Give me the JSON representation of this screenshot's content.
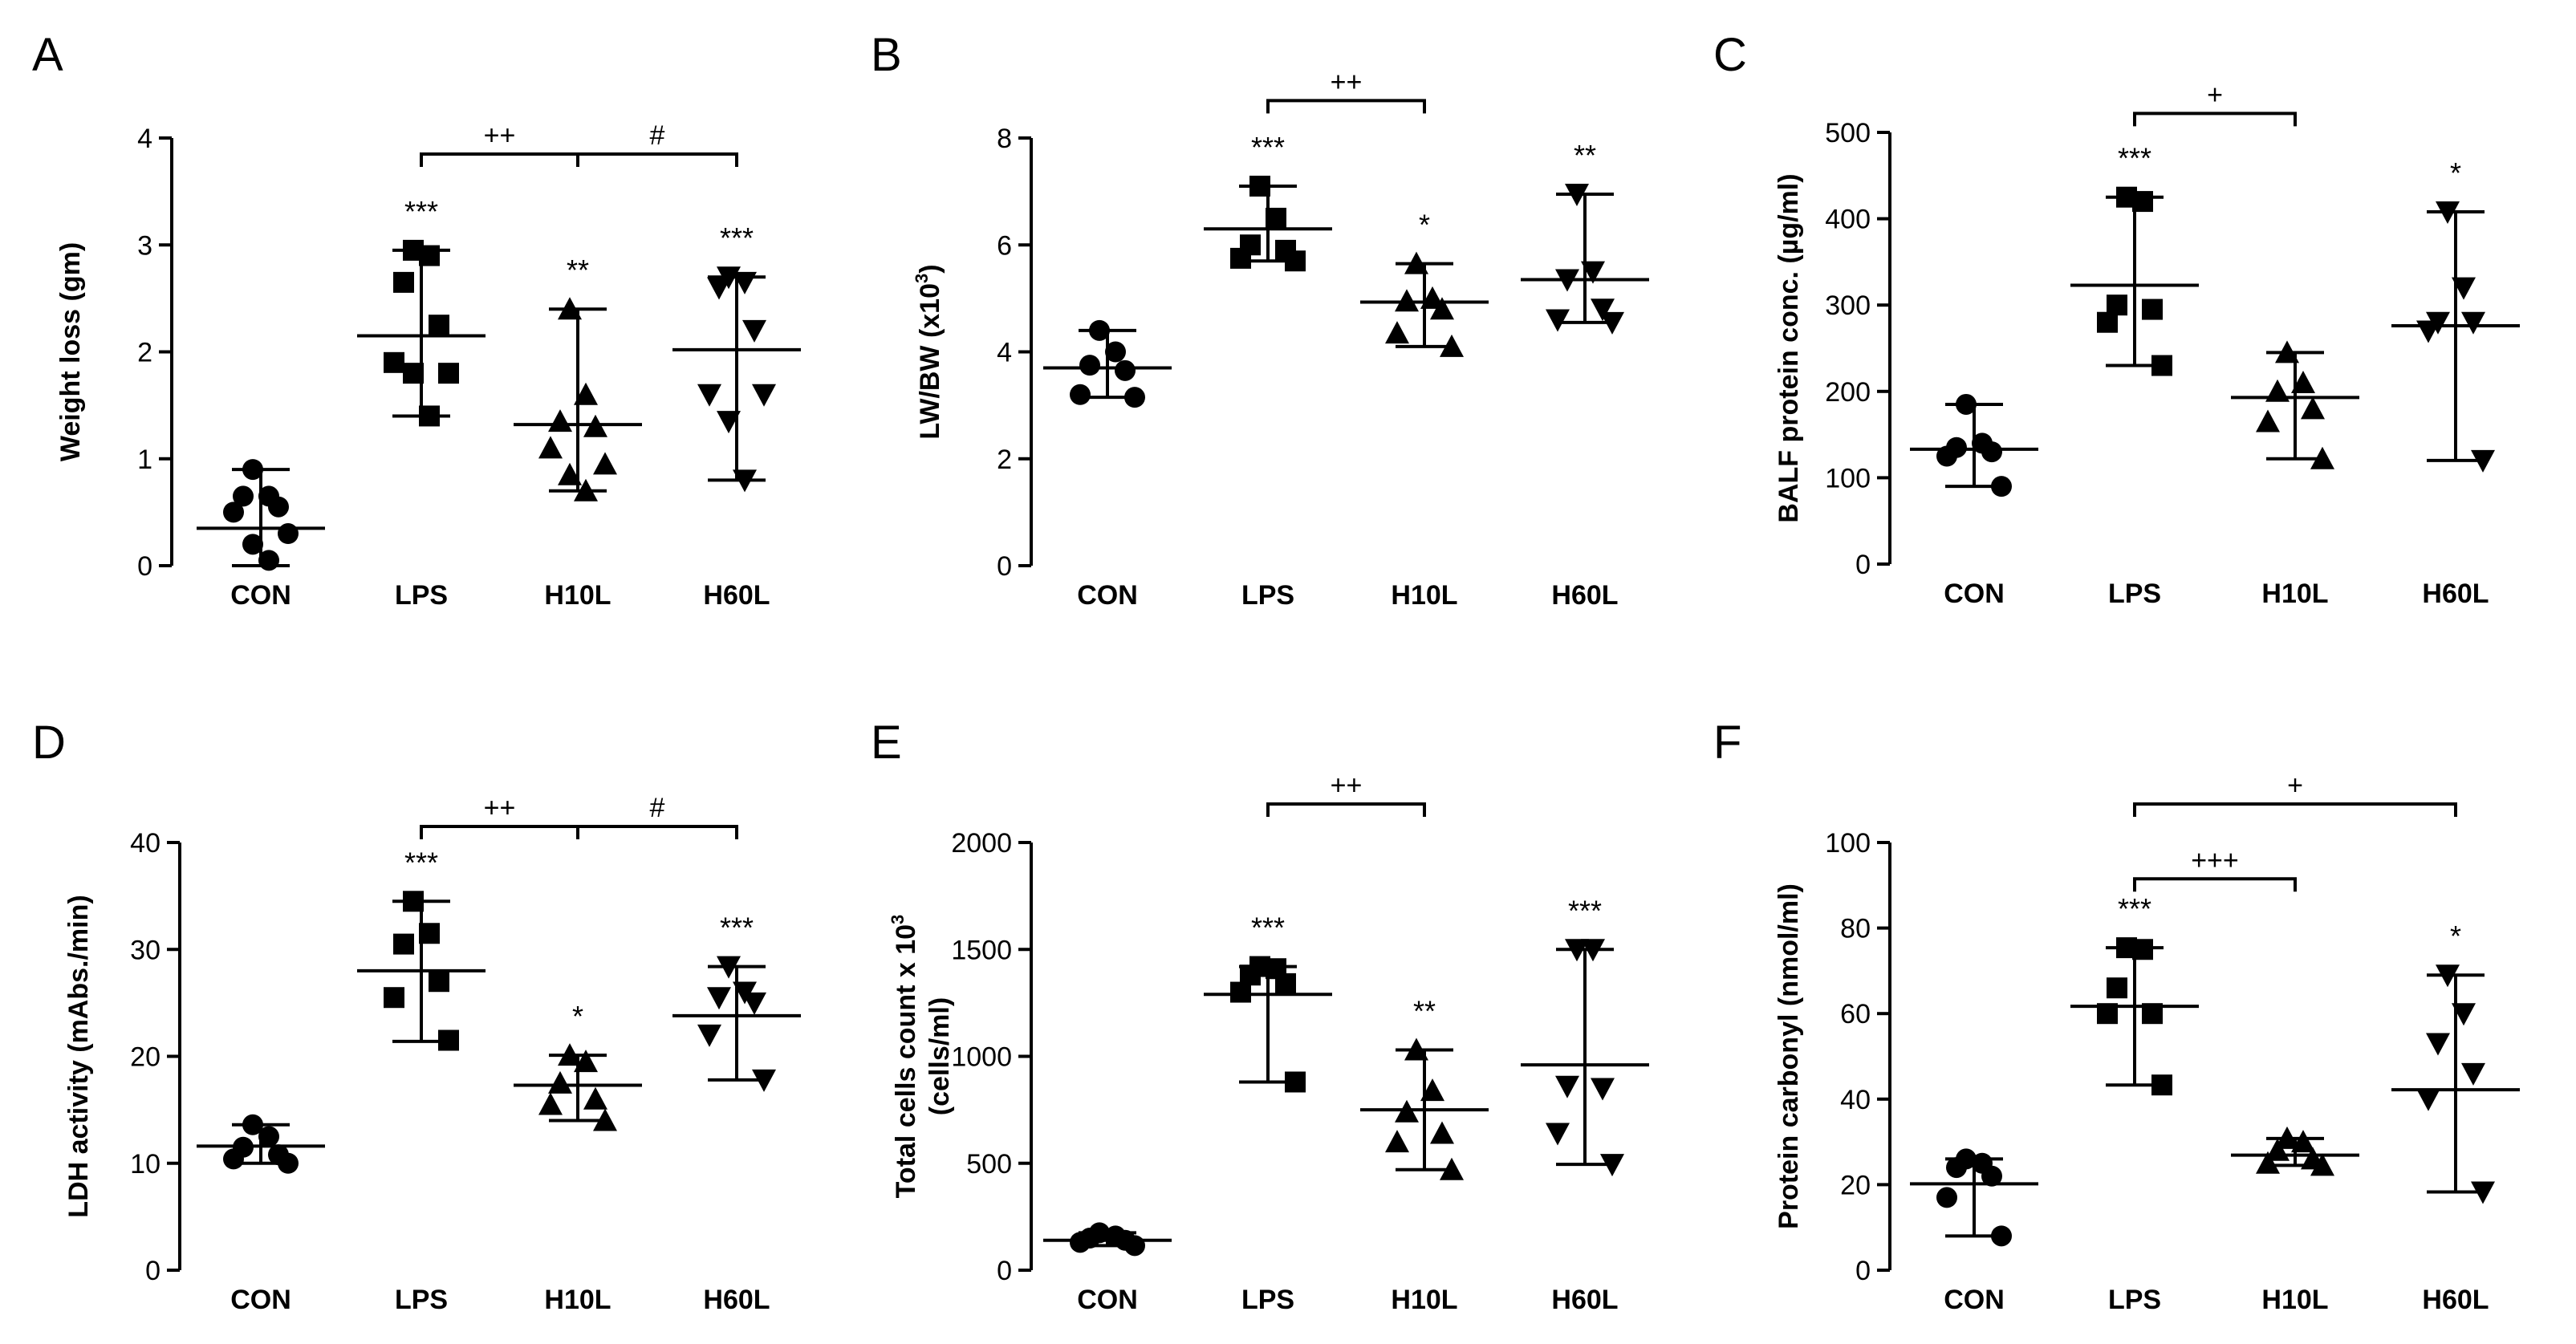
{
  "figure": {
    "title": ""
  },
  "chart_data": [
    {
      "panel": "A",
      "type": "scatter",
      "ylabel": "Weight loss (gm)",
      "ylim": [
        0,
        4
      ],
      "yticks": [
        0,
        1,
        2,
        3,
        4
      ],
      "categories": [
        "CON",
        "LPS",
        "H10L",
        "H60L"
      ],
      "markers": [
        "circle",
        "square",
        "triangle-up",
        "triangle-down"
      ],
      "groups": [
        {
          "name": "CON",
          "mean": 0.35,
          "sd_low": 0.0,
          "sd_high": 0.9,
          "points": [
            0.9,
            0.65,
            0.65,
            0.55,
            0.5,
            0.3,
            0.2,
            0.05
          ],
          "sig": ""
        },
        {
          "name": "LPS",
          "mean": 2.15,
          "sd_low": 1.4,
          "sd_high": 2.95,
          "points": [
            2.95,
            2.9,
            2.65,
            2.25,
            1.9,
            1.8,
            1.8,
            1.4
          ],
          "sig": "***"
        },
        {
          "name": "H10L",
          "mean": 1.32,
          "sd_low": 0.7,
          "sd_high": 2.4,
          "points": [
            2.4,
            1.6,
            1.35,
            1.3,
            1.1,
            0.95,
            0.85,
            0.7
          ],
          "sig": "**"
        },
        {
          "name": "H60L",
          "mean": 2.02,
          "sd_low": 0.8,
          "sd_high": 2.7,
          "points": [
            2.7,
            2.65,
            2.6,
            2.2,
            1.6,
            1.6,
            1.35,
            0.8
          ],
          "sig": "***"
        }
      ],
      "brackets": [
        {
          "from": 1,
          "to": 2,
          "label": "++",
          "y": 3.85
        },
        {
          "from": 2,
          "to": 3,
          "label": "#",
          "y": 3.85
        }
      ]
    },
    {
      "panel": "B",
      "type": "scatter",
      "ylabel": "LW/BW (x10",
      "ylabel_sup": "3",
      "ylabel_end": ")",
      "ylim": [
        0,
        8
      ],
      "yticks": [
        0,
        2,
        4,
        6,
        8
      ],
      "categories": [
        "CON",
        "LPS",
        "H10L",
        "H60L"
      ],
      "markers": [
        "circle",
        "square",
        "triangle-up",
        "triangle-down"
      ],
      "groups": [
        {
          "name": "CON",
          "mean": 3.7,
          "sd_low": 3.15,
          "sd_high": 4.4,
          "points": [
            4.4,
            4.0,
            3.75,
            3.65,
            3.2,
            3.15
          ],
          "sig": ""
        },
        {
          "name": "LPS",
          "mean": 6.3,
          "sd_low": 5.7,
          "sd_high": 7.1,
          "points": [
            7.1,
            6.5,
            6.0,
            5.9,
            5.75,
            5.7
          ],
          "sig": "***"
        },
        {
          "name": "H10L",
          "mean": 4.93,
          "sd_low": 4.1,
          "sd_high": 5.65,
          "points": [
            5.65,
            5.0,
            4.95,
            4.8,
            4.35,
            4.1
          ],
          "sig": "*"
        },
        {
          "name": "H60L",
          "mean": 5.35,
          "sd_low": 4.55,
          "sd_high": 6.95,
          "points": [
            6.95,
            5.5,
            5.35,
            4.8,
            4.6,
            4.55
          ],
          "sig": "**"
        }
      ],
      "brackets": [
        {
          "from": 1,
          "to": 2,
          "label": "++",
          "y": 8.7
        }
      ]
    },
    {
      "panel": "C",
      "type": "scatter",
      "ylabel": "BALF protein conc. (µg/ml)",
      "ylim": [
        0,
        500
      ],
      "yticks": [
        0,
        100,
        200,
        300,
        400,
        500
      ],
      "categories": [
        "CON",
        "LPS",
        "H10L",
        "H60L"
      ],
      "markers": [
        "circle",
        "square",
        "triangle-up",
        "triangle-down"
      ],
      "groups": [
        {
          "name": "CON",
          "mean": 133,
          "sd_low": 90,
          "sd_high": 185,
          "points": [
            185,
            140,
            135,
            130,
            125,
            90
          ],
          "sig": ""
        },
        {
          "name": "LPS",
          "mean": 323,
          "sd_low": 230,
          "sd_high": 425,
          "points": [
            425,
            420,
            300,
            295,
            280,
            230
          ],
          "sig": "***"
        },
        {
          "name": "H10L",
          "mean": 193,
          "sd_low": 122,
          "sd_high": 245,
          "points": [
            245,
            210,
            200,
            180,
            165,
            122
          ],
          "sig": ""
        },
        {
          "name": "H60L",
          "mean": 276,
          "sd_low": 120,
          "sd_high": 408,
          "points": [
            408,
            320,
            280,
            280,
            270,
            120
          ],
          "sig": "*"
        }
      ],
      "brackets": [
        {
          "from": 1,
          "to": 2,
          "label": "+",
          "y": 522
        }
      ]
    },
    {
      "panel": "D",
      "type": "scatter",
      "ylabel": "LDH activity (mAbs./min)",
      "ylim": [
        0,
        40
      ],
      "yticks": [
        0,
        10,
        20,
        30,
        40
      ],
      "categories": [
        "CON",
        "LPS",
        "H10L",
        "H60L"
      ],
      "markers": [
        "circle",
        "square",
        "triangle-up",
        "triangle-down"
      ],
      "groups": [
        {
          "name": "CON",
          "mean": 11.6,
          "sd_low": 10.0,
          "sd_high": 13.6,
          "points": [
            13.6,
            12.5,
            11.5,
            10.8,
            10.4,
            10.0
          ],
          "sig": ""
        },
        {
          "name": "LPS",
          "mean": 28.0,
          "sd_low": 21.4,
          "sd_high": 34.5,
          "points": [
            34.5,
            31.5,
            30.5,
            27.0,
            25.5,
            21.5
          ],
          "sig": "***"
        },
        {
          "name": "H10L",
          "mean": 17.3,
          "sd_low": 14.0,
          "sd_high": 20.1,
          "points": [
            20.1,
            19.5,
            17.5,
            16.0,
            15.5,
            14.0
          ],
          "sig": "*"
        },
        {
          "name": "H60L",
          "mean": 23.8,
          "sd_low": 17.8,
          "sd_high": 28.4,
          "points": [
            28.4,
            26.0,
            25.5,
            25.0,
            22.0,
            17.8
          ],
          "sig": "***"
        }
      ],
      "brackets": [
        {
          "from": 1,
          "to": 2,
          "label": "++",
          "y": 41.5
        },
        {
          "from": 2,
          "to": 3,
          "label": "#",
          "y": 41.5
        }
      ]
    },
    {
      "panel": "E",
      "type": "scatter",
      "ylabel": "Total cells count x 10",
      "ylabel_sup": "3",
      "ylabel2": "(cells/ml)",
      "ylim": [
        0,
        2000
      ],
      "yticks": [
        0,
        500,
        1000,
        1500,
        2000
      ],
      "categories": [
        "CON",
        "LPS",
        "H10L",
        "H60L"
      ],
      "markers": [
        "circle",
        "square",
        "triangle-up",
        "triangle-down"
      ],
      "groups": [
        {
          "name": "CON",
          "mean": 140,
          "sd_low": 115,
          "sd_high": 175,
          "points": [
            175,
            160,
            150,
            140,
            130,
            115
          ],
          "sig": ""
        },
        {
          "name": "LPS",
          "mean": 1290,
          "sd_low": 880,
          "sd_high": 1420,
          "points": [
            1420,
            1410,
            1380,
            1340,
            1300,
            880
          ],
          "sig": "***"
        },
        {
          "name": "H10L",
          "mean": 750,
          "sd_low": 470,
          "sd_high": 1030,
          "points": [
            1030,
            840,
            740,
            640,
            600,
            470
          ],
          "sig": "**"
        },
        {
          "name": "H60L",
          "mean": 960,
          "sd_low": 495,
          "sd_high": 1500,
          "points": [
            1500,
            1500,
            860,
            850,
            640,
            495
          ],
          "sig": "***"
        }
      ],
      "brackets": [
        {
          "from": 1,
          "to": 2,
          "label": "++",
          "y": 2180
        }
      ]
    },
    {
      "panel": "F",
      "type": "scatter",
      "ylabel": "Protein carbonyl (nmol/ml)",
      "ylim": [
        0,
        100
      ],
      "yticks": [
        0,
        20,
        40,
        60,
        80,
        100
      ],
      "categories": [
        "CON",
        "LPS",
        "H10L",
        "H60L"
      ],
      "markers": [
        "circle",
        "square",
        "triangle-up",
        "triangle-down"
      ],
      "groups": [
        {
          "name": "CON",
          "mean": 20.2,
          "sd_low": 8.0,
          "sd_high": 26.0,
          "points": [
            26.0,
            25.0,
            24.0,
            22.0,
            17.0,
            8.0
          ],
          "sig": ""
        },
        {
          "name": "LPS",
          "mean": 61.7,
          "sd_low": 43.3,
          "sd_high": 75.4,
          "points": [
            75.4,
            75.0,
            66.0,
            60.0,
            60.0,
            43.3
          ],
          "sig": "***"
        },
        {
          "name": "H10L",
          "mean": 26.9,
          "sd_low": 24.5,
          "sd_high": 30.8,
          "points": [
            30.8,
            30.0,
            28.0,
            26.0,
            25.0,
            24.5
          ],
          "sig": ""
        },
        {
          "name": "H60L",
          "mean": 42.2,
          "sd_low": 18.3,
          "sd_high": 69.0,
          "points": [
            69.0,
            60.0,
            53.0,
            46.0,
            40.0,
            18.3
          ],
          "sig": "*"
        }
      ],
      "brackets": [
        {
          "from": 1,
          "to": 3,
          "label": "+",
          "y": 109
        },
        {
          "from": 1,
          "to": 2,
          "label": "+++",
          "y": 91.5
        }
      ]
    }
  ]
}
